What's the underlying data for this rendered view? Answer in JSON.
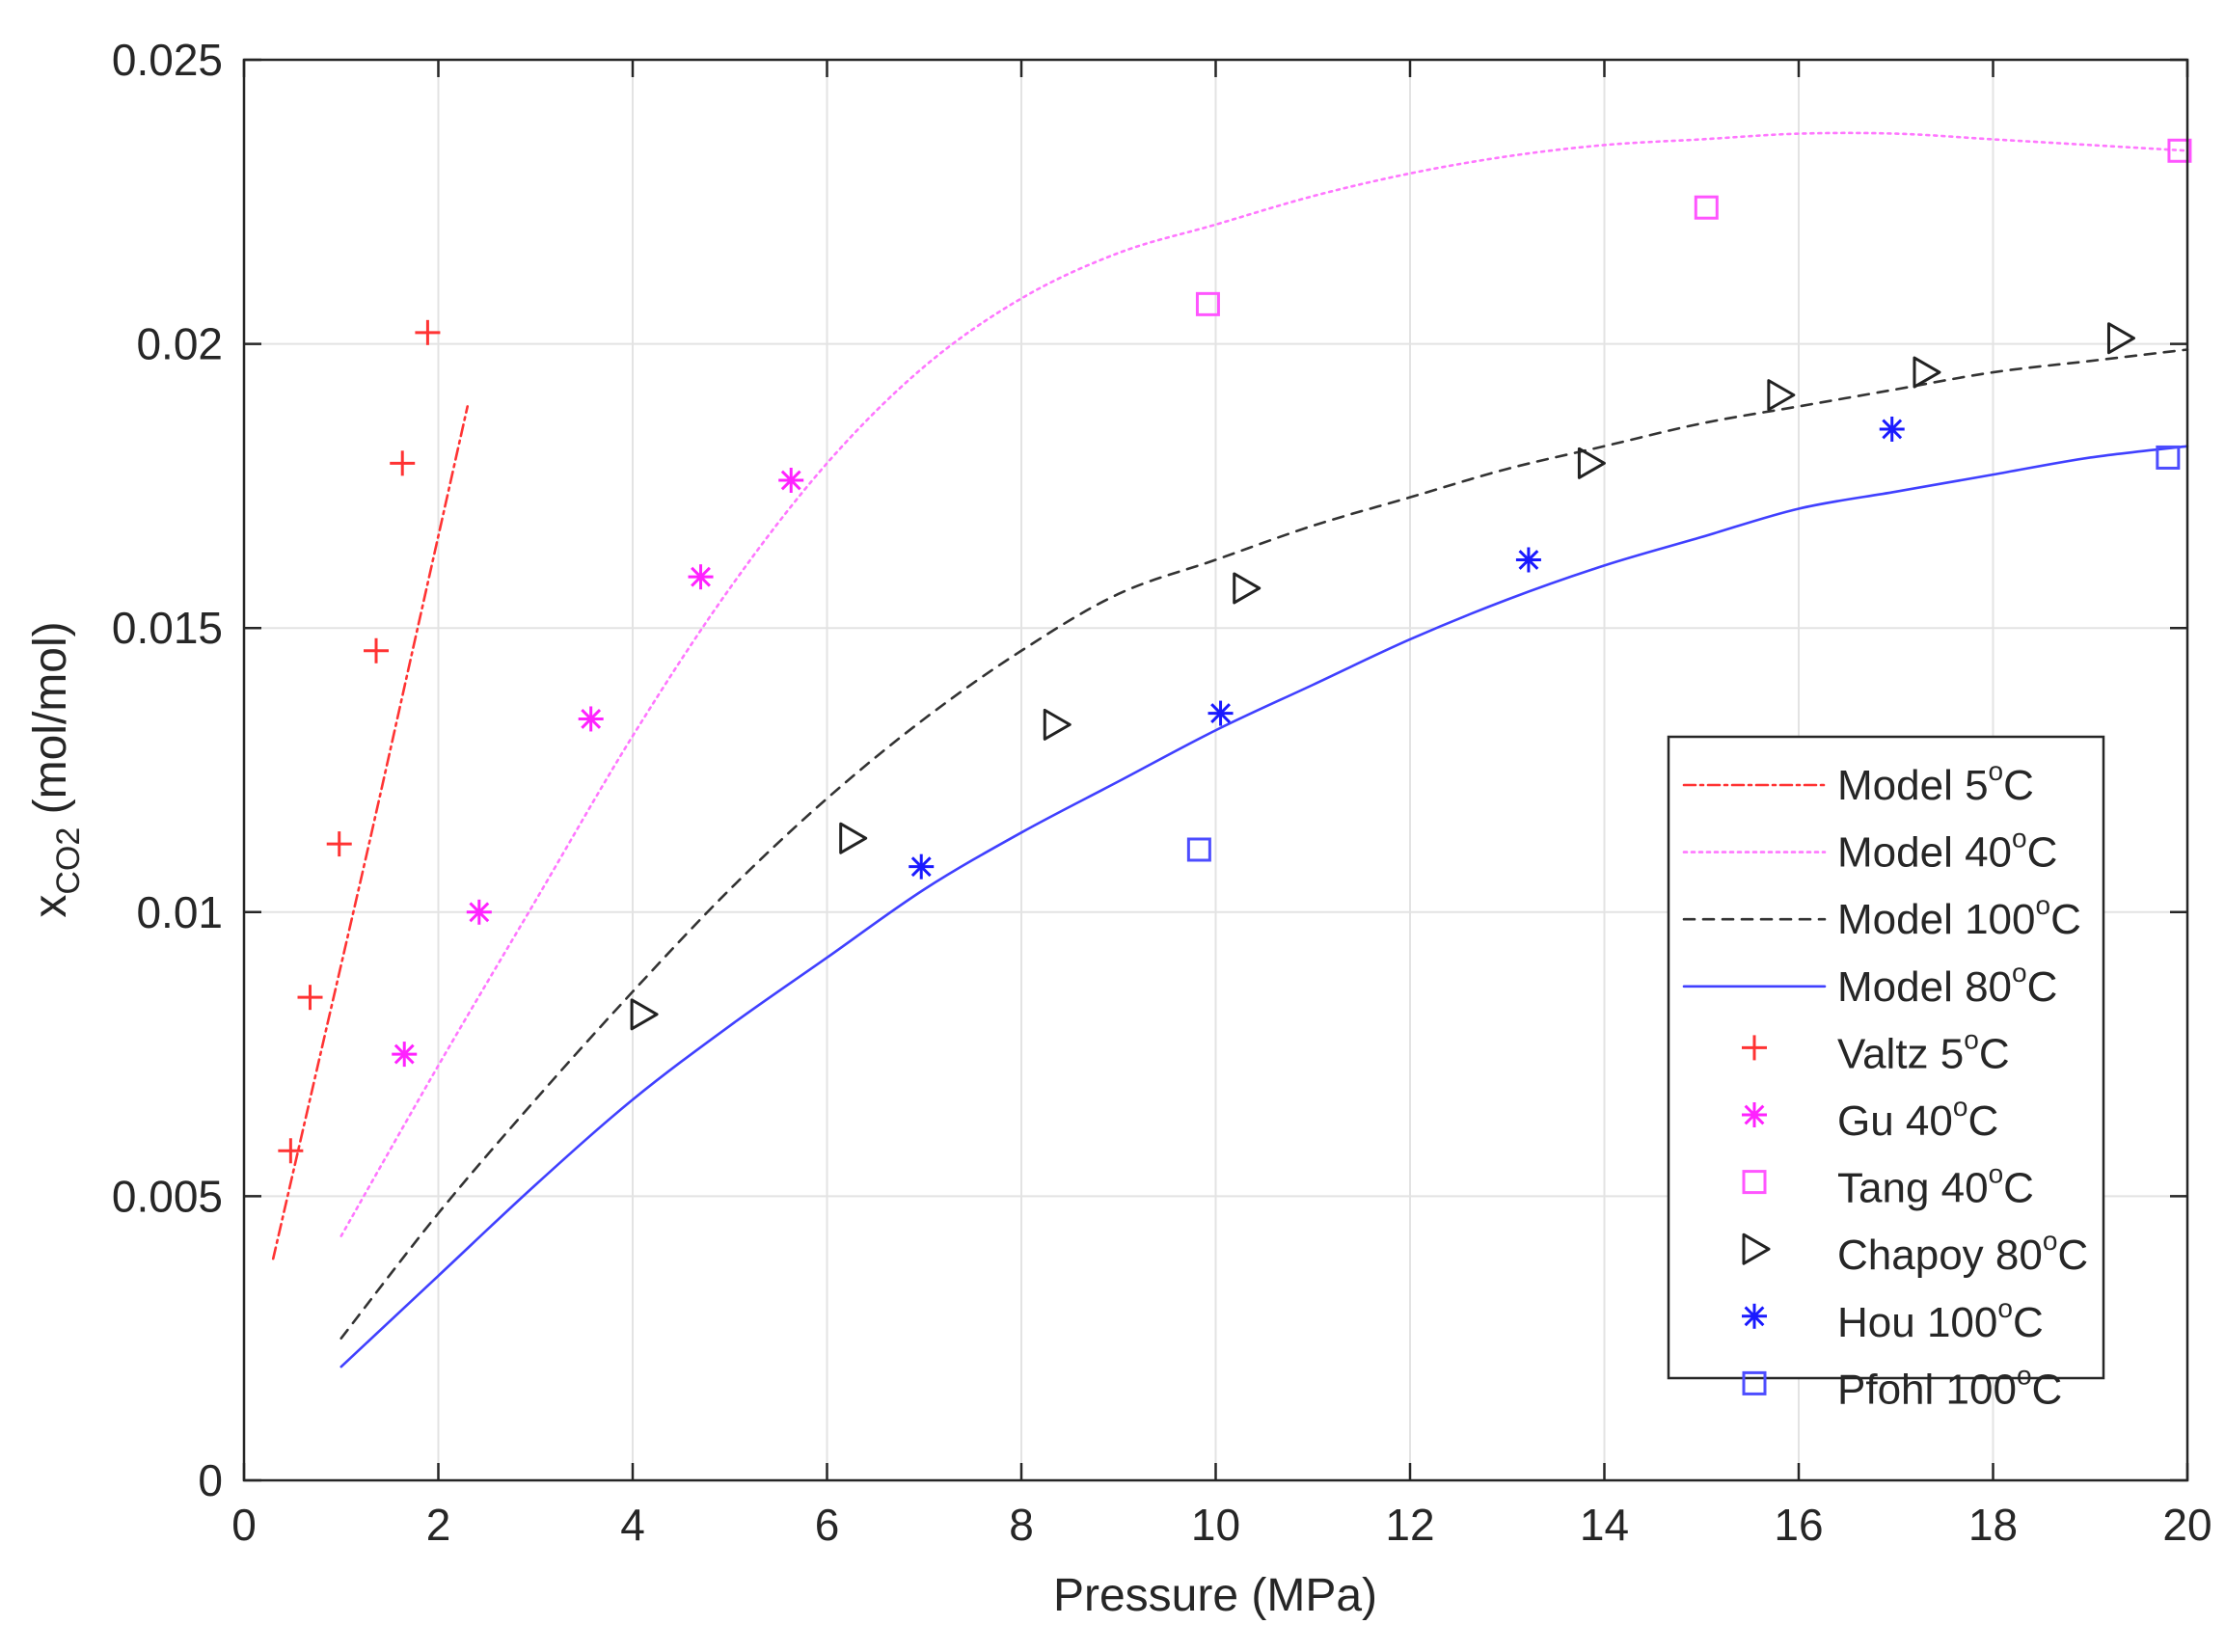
{
  "chart_data": {
    "type": "scatter",
    "title": "",
    "xlabel": "Pressure (MPa)",
    "ylabel": {
      "base": "x",
      "sub": "CO2",
      "rest": " (mol/mol)"
    },
    "xlim": [
      0,
      20
    ],
    "ylim": [
      0,
      0.025
    ],
    "xticks": [
      0,
      2,
      4,
      6,
      8,
      10,
      12,
      14,
      16,
      18,
      20
    ],
    "xtick_labels": [
      "0",
      "2",
      "4",
      "6",
      "8",
      "10",
      "12",
      "14",
      "16",
      "18",
      "20"
    ],
    "yticks": [
      0,
      0.005,
      0.01,
      0.015,
      0.02,
      0.025
    ],
    "ytick_labels": [
      "0",
      "0.005",
      "0.01",
      "0.015",
      "0.02",
      "0.025"
    ],
    "grid": true,
    "legend_position": "lower-right",
    "series": [
      {
        "id": "model-5c",
        "kind": "line",
        "label": "Model 5",
        "unit": "C",
        "color": "#ff3333",
        "dash": "dashdot",
        "x": [
          0.3,
          0.8,
          1.3,
          1.8,
          2.3
        ],
        "y": [
          0.0039,
          0.0076,
          0.0113,
          0.0151,
          0.0189
        ]
      },
      {
        "id": "model-40c",
        "kind": "line",
        "label": "Model 40",
        "unit": "C",
        "color": "#ff77ff",
        "dash": "dotted",
        "x": [
          1,
          2,
          3,
          4,
          5,
          6,
          7,
          8,
          9,
          10,
          11,
          12,
          13,
          14,
          15,
          16,
          17,
          18,
          19,
          20
        ],
        "y": [
          0.0043,
          0.0073,
          0.0102,
          0.0131,
          0.0157,
          0.0179,
          0.0196,
          0.0208,
          0.0216,
          0.0221,
          0.0226,
          0.023,
          0.0233,
          0.0235,
          0.0236,
          0.0237,
          0.0237,
          0.0236,
          0.0235,
          0.0234
        ]
      },
      {
        "id": "model-100c",
        "kind": "line",
        "label": "Model 100",
        "unit": "C",
        "color": "#333333",
        "dash": "dashed",
        "x": [
          1,
          2,
          3,
          4,
          5,
          6,
          7,
          8,
          9,
          10,
          11,
          12,
          13,
          14,
          15,
          16,
          17,
          18,
          19,
          20
        ],
        "y": [
          0.0025,
          0.0047,
          0.0067,
          0.0086,
          0.0104,
          0.012,
          0.0134,
          0.0146,
          0.0156,
          0.0162,
          0.0168,
          0.0173,
          0.0178,
          0.0182,
          0.0186,
          0.0189,
          0.0192,
          0.0195,
          0.0197,
          0.0199
        ]
      },
      {
        "id": "model-80c",
        "kind": "line",
        "label": "Model 80",
        "unit": "C",
        "color": "#4040ff",
        "dash": "solid",
        "x": [
          1,
          2,
          3,
          4,
          5,
          6,
          7,
          8,
          9,
          10,
          11,
          12,
          13,
          14,
          15,
          16,
          17,
          18,
          19,
          20
        ],
        "y": [
          0.002,
          0.0036,
          0.0052,
          0.0067,
          0.008,
          0.0092,
          0.0104,
          0.0114,
          0.0123,
          0.0132,
          0.014,
          0.0148,
          0.0155,
          0.0161,
          0.0166,
          0.0171,
          0.0174,
          0.0177,
          0.018,
          0.0182
        ]
      },
      {
        "id": "valtz-5c",
        "kind": "marker",
        "marker": "plus",
        "label": "Valtz 5",
        "unit": "C",
        "color": "#ff3333",
        "x": [
          0.48,
          0.68,
          0.98,
          1.36,
          1.63,
          1.89
        ],
        "y": [
          0.0058,
          0.0085,
          0.0112,
          0.0146,
          0.0179,
          0.0202
        ]
      },
      {
        "id": "gu-40c",
        "kind": "marker",
        "marker": "asterisk",
        "label": "Gu 40",
        "unit": "C",
        "color": "#ff22ff",
        "x": [
          1.65,
          2.42,
          3.57,
          4.7,
          5.63
        ],
        "y": [
          0.0075,
          0.01,
          0.0134,
          0.0159,
          0.0176
        ]
      },
      {
        "id": "tang-40c",
        "kind": "marker",
        "marker": "square",
        "label": "Tang 40",
        "unit": "C",
        "color": "#ff55ff",
        "x": [
          9.92,
          15.05,
          19.92
        ],
        "y": [
          0.0207,
          0.0224,
          0.0234
        ]
      },
      {
        "id": "chapoy-80c",
        "kind": "marker",
        "marker": "triangle-right",
        "label": "Chapoy 80",
        "unit": "C",
        "color": "#222222",
        "x": [
          4.1,
          6.25,
          8.35,
          10.3,
          13.85,
          15.8,
          17.3,
          19.3
        ],
        "y": [
          0.0082,
          0.0113,
          0.0133,
          0.0157,
          0.0179,
          0.0191,
          0.0195,
          0.0201
        ]
      },
      {
        "id": "hou-100c",
        "kind": "marker",
        "marker": "asterisk",
        "label": "Hou 100",
        "unit": "C",
        "color": "#1a1aff",
        "x": [
          6.97,
          10.05,
          13.22,
          16.96
        ],
        "y": [
          0.0108,
          0.0135,
          0.0162,
          0.0185
        ]
      },
      {
        "id": "pfohl-100c",
        "kind": "marker",
        "marker": "square",
        "label": "Pfohl 100",
        "unit": "C",
        "color": "#4d4dff",
        "x": [
          9.83,
          19.8
        ],
        "y": [
          0.0111,
          0.018
        ]
      }
    ]
  }
}
